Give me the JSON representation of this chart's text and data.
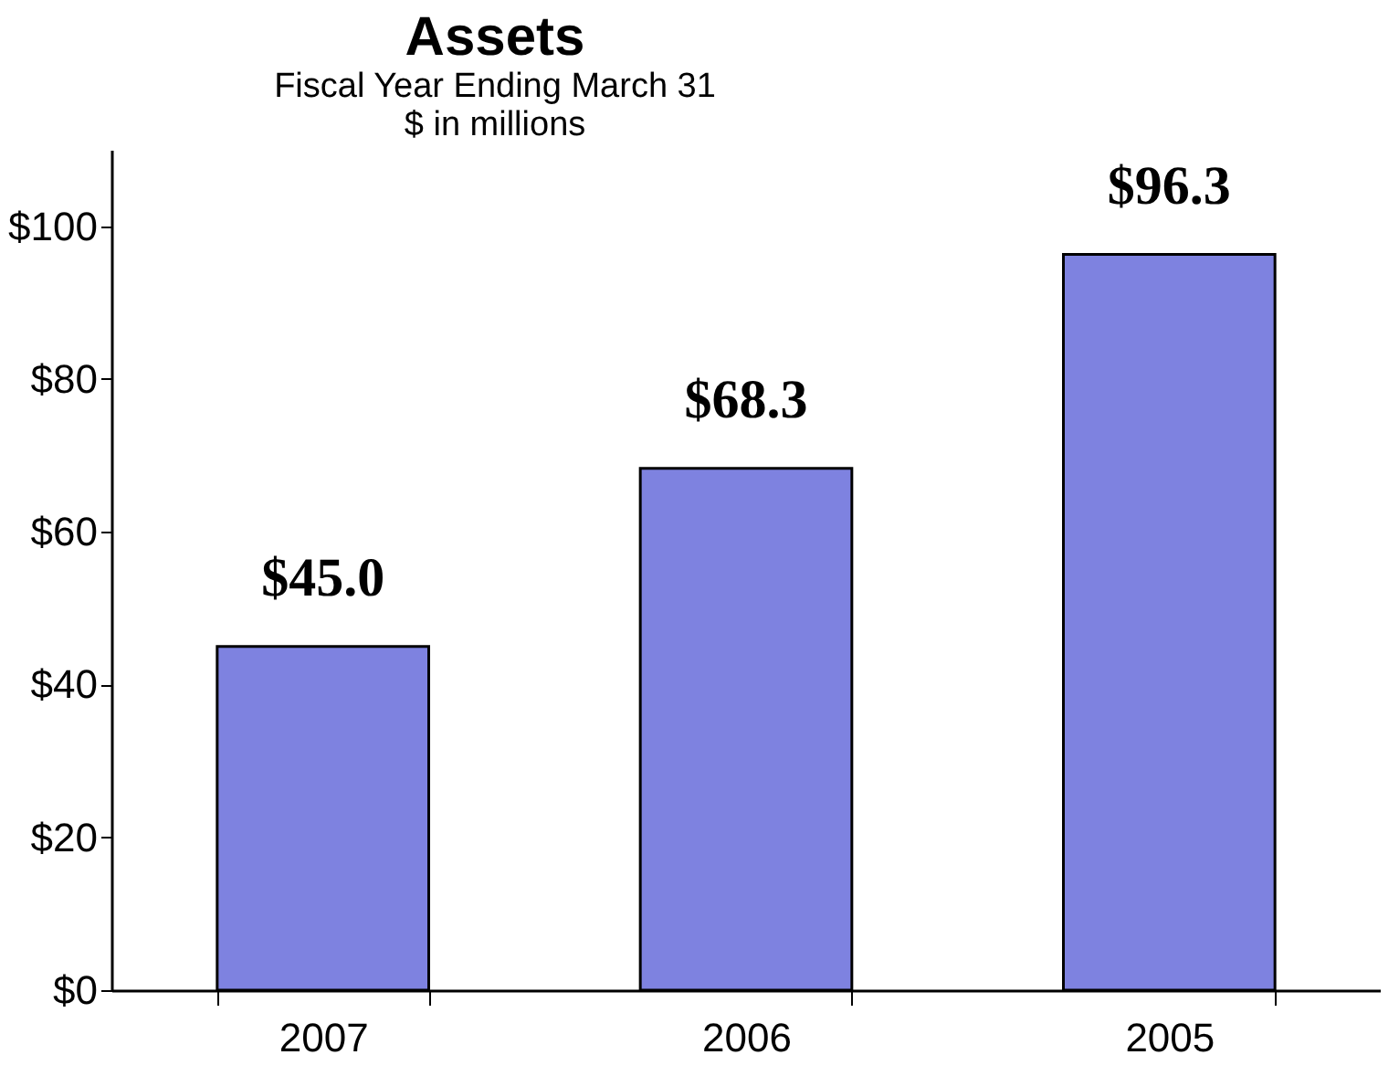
{
  "chart_data": {
    "type": "bar",
    "title": "Assets",
    "subtitle": "Fiscal Year Ending March 31",
    "annotations": [
      "$ in millions"
    ],
    "categories": [
      "2007",
      "2006",
      "2005"
    ],
    "values": [
      45.0,
      68.3,
      96.3
    ],
    "value_labels": [
      "$45.0",
      "$68.3",
      "$96.3"
    ],
    "color": "#7e82e0",
    "ylim": [
      0,
      110
    ],
    "yticks": [
      {
        "value": 0,
        "label": "$0"
      },
      {
        "value": 20,
        "label": "$20"
      },
      {
        "value": 40,
        "label": "$40"
      },
      {
        "value": 60,
        "label": "$60"
      },
      {
        "value": 80,
        "label": "$80"
      },
      {
        "value": 100,
        "label": "$100"
      }
    ],
    "grid": false
  }
}
